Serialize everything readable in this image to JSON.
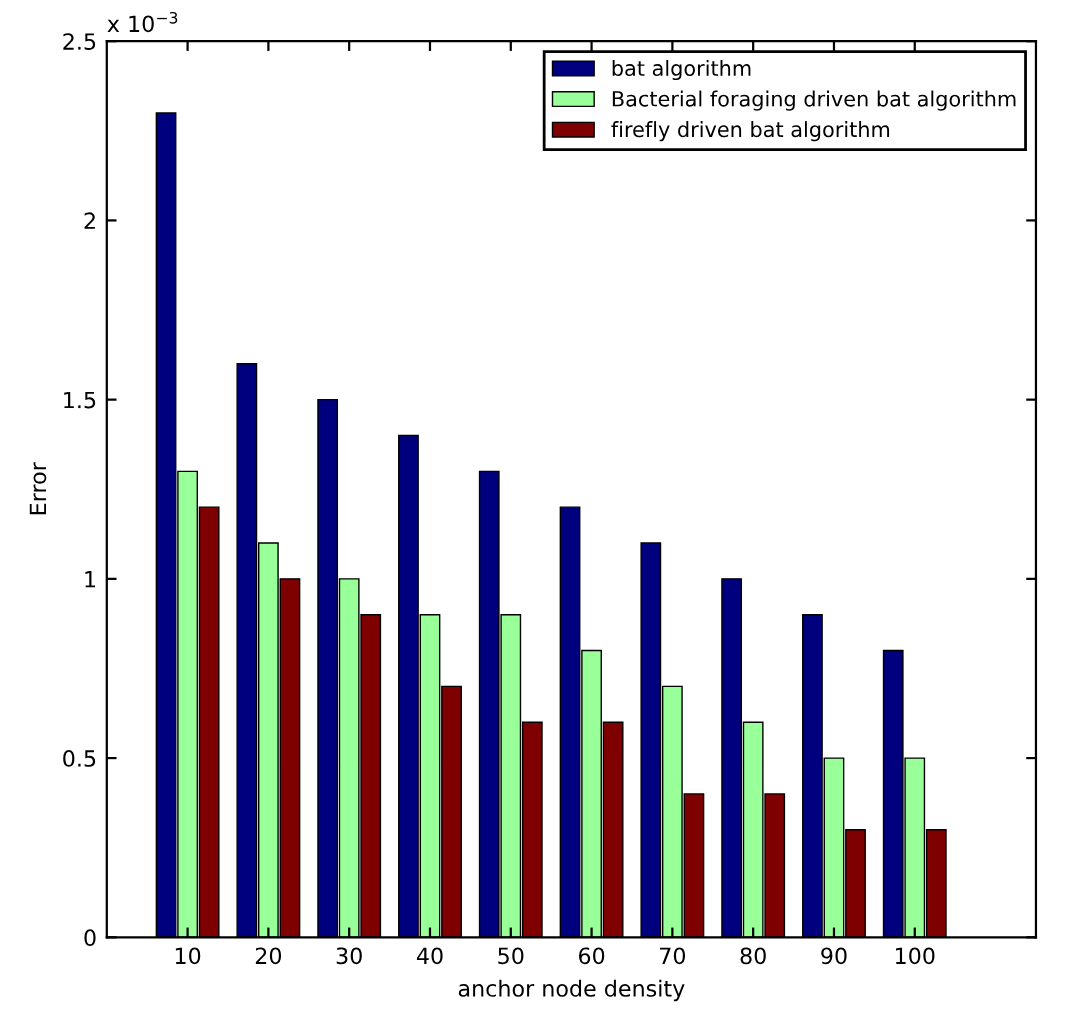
{
  "chart_data": {
    "type": "bar",
    "xlabel": "anchor node density",
    "ylabel": "Error",
    "categories": [
      "10",
      "20",
      "30",
      "40",
      "50",
      "60",
      "70",
      "80",
      "90",
      "100"
    ],
    "series": [
      {
        "name": "bat algorithm",
        "color": "#00007f",
        "values": [
          2.3,
          1.6,
          1.5,
          1.4,
          1.3,
          1.2,
          1.1,
          1.0,
          0.9,
          0.8
        ]
      },
      {
        "name": "Bacterial foraging driven bat algorithm",
        "color": "#99ff99",
        "values": [
          1.3,
          1.1,
          1.0,
          0.9,
          0.9,
          0.8,
          0.7,
          0.6,
          0.5,
          0.5
        ]
      },
      {
        "name": "firefly driven bat algorithm",
        "color": "#7f0000",
        "values": [
          1.2,
          1.0,
          0.9,
          0.7,
          0.6,
          0.6,
          0.4,
          0.4,
          0.3,
          0.3
        ]
      }
    ],
    "ylim": [
      0,
      2.5
    ],
    "yticks": [
      0,
      0.5,
      1,
      1.5,
      2,
      2.5
    ],
    "annotations": [
      "x 10$^{−3}$"
    ],
    "legend": "top right",
    "grid": false
  }
}
